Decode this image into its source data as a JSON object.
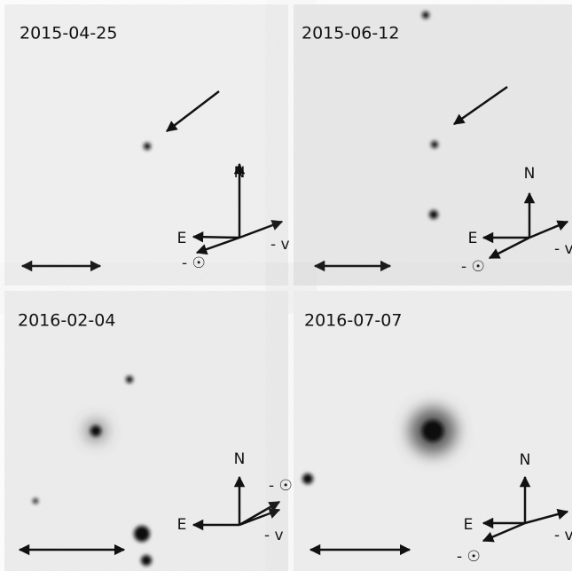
{
  "panels": [
    {
      "date": "2015-04-25",
      "north": "N",
      "east": "E",
      "velocity": "- v",
      "sun": "- ☉"
    },
    {
      "date": "2015-06-12",
      "north": "N",
      "east": "E",
      "velocity": "- v",
      "sun": "- ☉"
    },
    {
      "date": "2016-02-04",
      "north": "N",
      "east": "E",
      "velocity": "- v",
      "sun": "- ☉"
    },
    {
      "date": "2016-07-07",
      "north": "N",
      "east": "E",
      "velocity": "- v",
      "sun": "- ☉"
    }
  ]
}
